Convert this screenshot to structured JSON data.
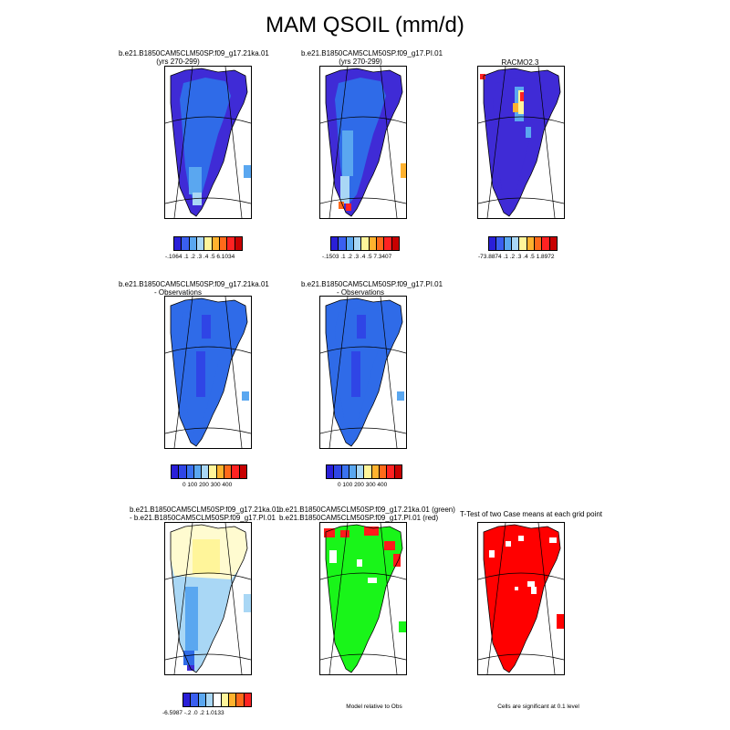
{
  "title": "MAM QSOIL (mm/d)",
  "colors": {
    "deep_blue": "#3f2bd6",
    "mid_blue": "#2f6be8",
    "light_blue": "#5aa7f0",
    "pale_blue": "#a9d7f5",
    "pale_yellow": "#fff59a",
    "diff_green": "#19f519",
    "diff_red": "#ff1a1a",
    "sig_red": "#ff0000"
  },
  "chart_data": [
    {
      "type": "heatmap",
      "title": "b.e21.B1850CAM5CLM50SP.f09_g17.21ka.01",
      "subtitle": "(yrs 270-299)",
      "colorbar": {
        "colors": [
          "#2a1fd8",
          "#3a5ff0",
          "#5aa7f0",
          "#a9d7f5",
          "#fff59a",
          "#ffb22e",
          "#ff6a1a",
          "#ff2222",
          "#c80000"
        ],
        "labels": "-.1064 .1 .2 .3 .4 .5 6.1034",
        "levels": [
          0.1,
          0.2,
          0.3,
          0.4,
          0.5
        ],
        "min": -0.1064,
        "max": 6.1034
      }
    },
    {
      "type": "heatmap",
      "title": "b.e21.B1850CAM5CLM50SP.f09_g17.PI.01",
      "subtitle": "(yrs 270-299)",
      "colorbar": {
        "colors": [
          "#2a1fd8",
          "#3a5ff0",
          "#5aa7f0",
          "#a9d7f5",
          "#fff59a",
          "#ffb22e",
          "#ff6a1a",
          "#ff2222",
          "#c80000"
        ],
        "labels": "-.1503 .1 .2 .3 .4 .5 7.3407",
        "levels": [
          0.1,
          0.2,
          0.3,
          0.4,
          0.5
        ],
        "min": -0.1503,
        "max": 7.3407
      }
    },
    {
      "type": "heatmap",
      "title": "RACMO2.3",
      "colorbar": {
        "colors": [
          "#2a1fd8",
          "#3a5ff0",
          "#5aa7f0",
          "#a9d7f5",
          "#fff59a",
          "#ffb22e",
          "#ff6a1a",
          "#ff2222",
          "#c80000"
        ],
        "labels": "-73.8874 .1 .2 .3 .4 .5 1.8972",
        "levels": [
          0.1,
          0.2,
          0.3,
          0.4,
          0.5
        ],
        "min": -73.8874,
        "max": 1.8972
      }
    },
    {
      "type": "heatmap",
      "title": "b.e21.B1850CAM5CLM50SP.f09_g17.21ka.01",
      "subtitle": "- Observations",
      "colorbar": {
        "colors": [
          "#2a1fd8",
          "#2f45e6",
          "#3a72f0",
          "#5aa7f0",
          "#a9d7f5",
          "#fff59a",
          "#ffb22e",
          "#ff6a1a",
          "#ff2222",
          "#c80000"
        ],
        "labels": "0 100 200 300 400",
        "levels": [
          0,
          100,
          200,
          300,
          400
        ]
      }
    },
    {
      "type": "heatmap",
      "title": "b.e21.B1850CAM5CLM50SP.f09_g17.PI.01",
      "subtitle": "- Observations",
      "colorbar": {
        "colors": [
          "#2a1fd8",
          "#2f45e6",
          "#3a72f0",
          "#5aa7f0",
          "#a9d7f5",
          "#fff59a",
          "#ffb22e",
          "#ff6a1a",
          "#ff2222",
          "#c80000"
        ],
        "labels": "0 100 200 300 400",
        "levels": [
          0,
          100,
          200,
          300,
          400
        ]
      }
    },
    {
      "type": "heatmap",
      "title": "b.e21.B1850CAM5CLM50SP.f09_g17.21ka.01",
      "subtitle": "- b.e21.B1850CAM5CLM50SP.f09_g17.PI.01",
      "colorbar": {
        "colors": [
          "#2a1fd8",
          "#3a5ff0",
          "#5aa7f0",
          "#a9d7f5",
          "#ffffff",
          "#fff59a",
          "#ffb22e",
          "#ff6a1a",
          "#ff2222"
        ],
        "labels": "-6.5987 -.2 .0 .2 1.0133",
        "levels": [
          -0.2,
          0,
          0.2
        ],
        "min": -6.5987,
        "max": 1.0133
      }
    },
    {
      "type": "heatmap",
      "title": "b.e21.B1850CAM5CLM50SP.f09_g17.21ka.01 (green)",
      "subtitle": "b.e21.B1850CAM5CLM50SP.f09_g17.PI.01 (red)",
      "note": "Model relative to Obs",
      "colors": {
        "case1": "green",
        "case2": "red"
      }
    },
    {
      "type": "heatmap",
      "title": "T-Test of two Case means at each grid point",
      "note": "Cells are significant at 0.1 level",
      "colors": {
        "significant": "red"
      }
    }
  ]
}
